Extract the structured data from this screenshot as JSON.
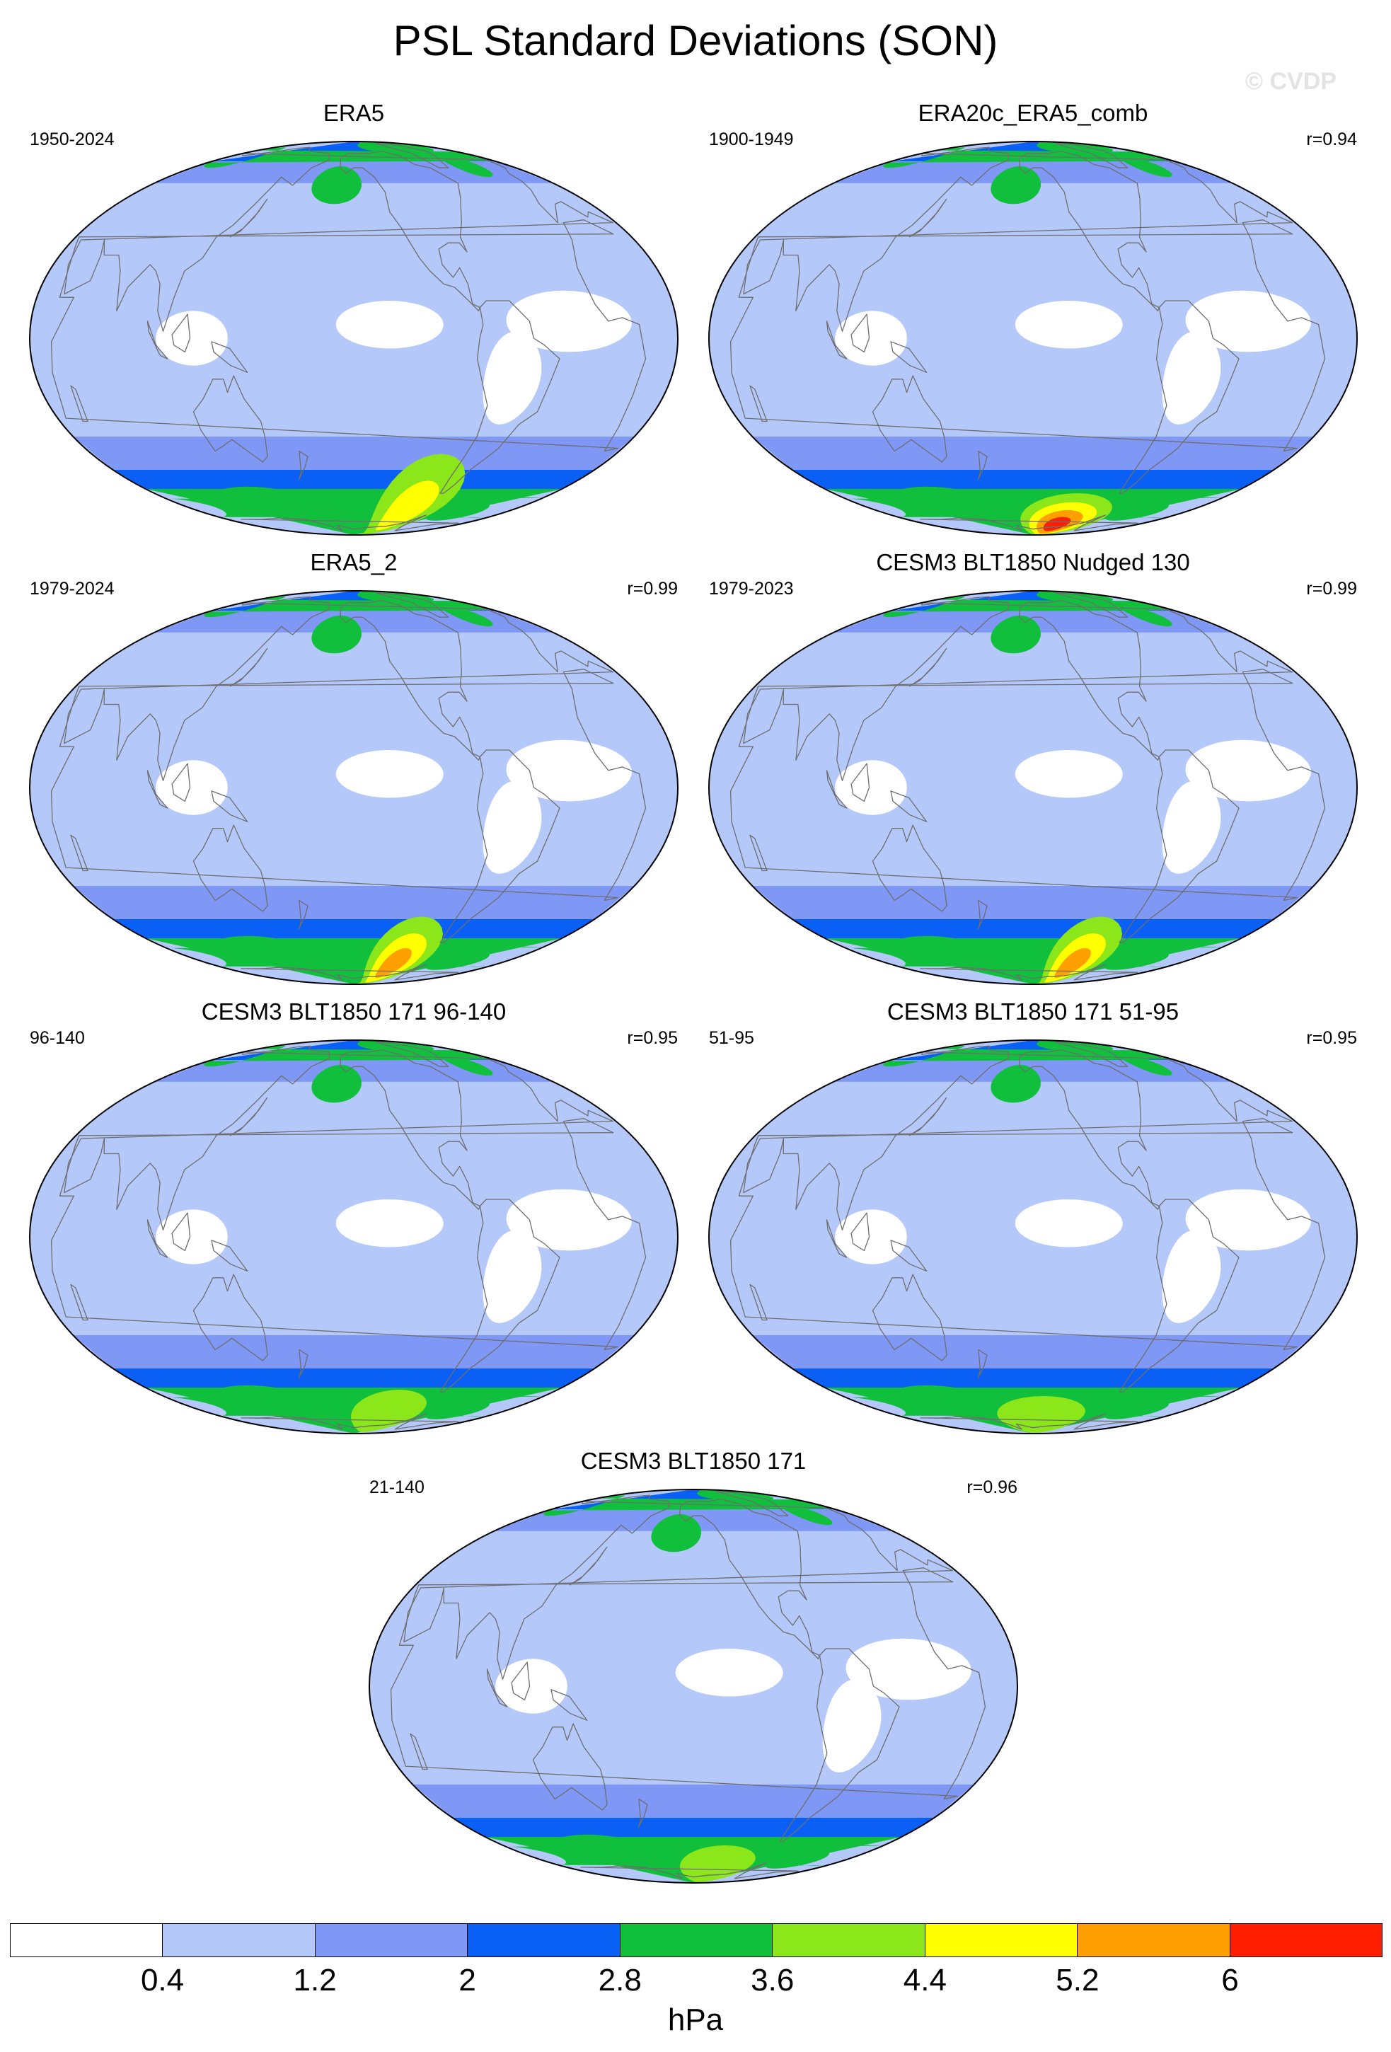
{
  "title": "PSL Standard Deviations (SON)",
  "watermark": "© CVDP",
  "panels": [
    {
      "name": "ERA5",
      "period": "1950-2024",
      "corr": "",
      "max_level": 6,
      "sh_peak": [
        -90,
        -62
      ],
      "peak_extent": [
        36,
        26
      ]
    },
    {
      "name": "ERA20c_ERA5_comb",
      "period": "1900-1949",
      "corr": "r=0.94",
      "max_level": 8,
      "sh_peak": [
        -110,
        -72
      ],
      "peak_extent": [
        60,
        20
      ]
    },
    {
      "name": "ERA5_2",
      "period": "1979-2024",
      "corr": "r=0.99",
      "max_level": 7,
      "sh_peak": [
        -100,
        -65
      ],
      "peak_extent": [
        34,
        24
      ]
    },
    {
      "name": "CESM3 BLT1850 Nudged 130",
      "period": "1979-2023",
      "corr": "r=0.99",
      "max_level": 7,
      "sh_peak": [
        -100,
        -65
      ],
      "peak_extent": [
        34,
        24
      ]
    },
    {
      "name": "CESM3 BLT1850 171 96-140",
      "period": "96-140",
      "corr": "r=0.95",
      "max_level": 5,
      "sh_peak": [
        -110,
        -67
      ],
      "peak_extent": [
        44,
        16
      ]
    },
    {
      "name": "CESM3 BLT1850 171 51-95",
      "period": "51-95",
      "corr": "r=0.95",
      "max_level": 5,
      "sh_peak": [
        -140,
        -70
      ],
      "peak_extent": [
        60,
        16
      ]
    },
    {
      "name": "CESM3 BLT1850 171",
      "period": "21-140",
      "corr": "r=0.96",
      "max_level": 5,
      "sh_peak": [
        -120,
        -70
      ],
      "peak_extent": [
        50,
        16
      ]
    }
  ],
  "colorbar": {
    "colors": [
      "#ffffff",
      "#b4c8fa",
      "#7f97f5",
      "#0a5ff5",
      "#10c03c",
      "#8be61a",
      "#ffff00",
      "#ffa000",
      "#ff1e00"
    ],
    "labels": [
      "0.4",
      "1.2",
      "2",
      "2.8",
      "3.6",
      "4.4",
      "5.2",
      "6"
    ],
    "units": "hPa"
  }
}
